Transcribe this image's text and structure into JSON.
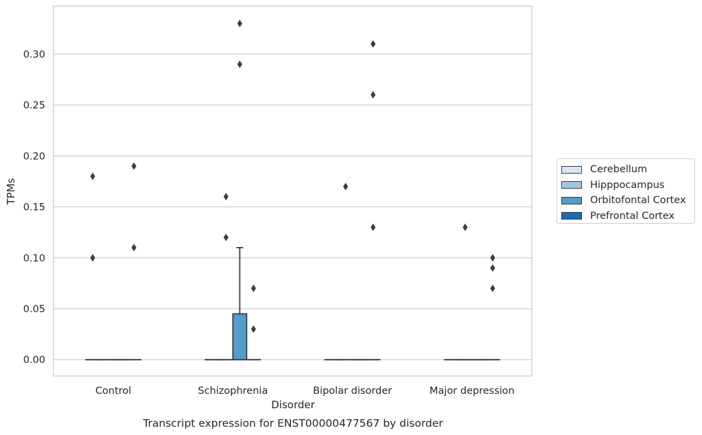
{
  "chart_data": {
    "type": "box",
    "caption": "Transcript expression for ENST00000477567 by disorder",
    "xlabel": "Disorder",
    "ylabel": "TPMs",
    "categories": [
      "Control",
      "Schizophrenia",
      "Bipolar disorder",
      "Major depression"
    ],
    "ylim": [
      -0.016,
      0.347
    ],
    "yticks": [
      "0.00",
      "0.05",
      "0.10",
      "0.15",
      "0.20",
      "0.25",
      "0.30"
    ],
    "grid": true,
    "legend_position": "right",
    "series": [
      {
        "name": "Cerebellum",
        "color": "#d6e6f4",
        "boxes": [
          {
            "q1": 0,
            "median": 0,
            "q3": 0,
            "whisker_low": 0,
            "whisker_high": 0,
            "outliers": [
              0.1,
              0.18
            ]
          },
          {
            "q1": 0,
            "median": 0,
            "q3": 0,
            "whisker_low": 0,
            "whisker_high": 0,
            "outliers": []
          },
          {
            "q1": 0,
            "median": 0,
            "q3": 0,
            "whisker_low": 0,
            "whisker_high": 0,
            "outliers": []
          },
          {
            "q1": 0,
            "median": 0,
            "q3": 0,
            "whisker_low": 0,
            "whisker_high": 0,
            "outliers": []
          }
        ]
      },
      {
        "name": "Hipppocampus",
        "color": "#9ac8e0",
        "boxes": [
          {
            "q1": 0,
            "median": 0,
            "q3": 0,
            "whisker_low": 0,
            "whisker_high": 0,
            "outliers": []
          },
          {
            "q1": 0,
            "median": 0,
            "q3": 0,
            "whisker_low": 0,
            "whisker_high": 0,
            "outliers": [
              0.12,
              0.16
            ]
          },
          {
            "q1": 0,
            "median": 0,
            "q3": 0,
            "whisker_low": 0,
            "whisker_high": 0,
            "outliers": [
              0.17
            ]
          },
          {
            "q1": 0,
            "median": 0,
            "q3": 0,
            "whisker_low": 0,
            "whisker_high": 0,
            "outliers": [
              0.13
            ]
          }
        ]
      },
      {
        "name": "Orbitofontal Cortex",
        "color": "#529dcc",
        "boxes": [
          {
            "q1": 0,
            "median": 0,
            "q3": 0,
            "whisker_low": 0,
            "whisker_high": 0,
            "outliers": []
          },
          {
            "q1": 0,
            "median": 0,
            "q3": 0.045,
            "whisker_low": 0,
            "whisker_high": 0.11,
            "outliers": [
              0.29,
              0.33
            ]
          },
          {
            "q1": 0,
            "median": 0,
            "q3": 0,
            "whisker_low": 0,
            "whisker_high": 0,
            "outliers": []
          },
          {
            "q1": 0,
            "median": 0,
            "q3": 0,
            "whisker_low": 0,
            "whisker_high": 0,
            "outliers": []
          }
        ]
      },
      {
        "name": "Prefrontal Cortex",
        "color": "#1c6aaf",
        "boxes": [
          {
            "q1": 0,
            "median": 0,
            "q3": 0,
            "whisker_low": 0,
            "whisker_high": 0,
            "outliers": [
              0.11,
              0.19
            ]
          },
          {
            "q1": 0,
            "median": 0,
            "q3": 0,
            "whisker_low": 0,
            "whisker_high": 0,
            "outliers": [
              0.03,
              0.07
            ]
          },
          {
            "q1": 0,
            "median": 0,
            "q3": 0,
            "whisker_low": 0,
            "whisker_high": 0,
            "outliers": [
              0.13,
              0.26,
              0.31
            ]
          },
          {
            "q1": 0,
            "median": 0,
            "q3": 0,
            "whisker_low": 0,
            "whisker_high": 0,
            "outliers": [
              0.07,
              0.09,
              0.1
            ]
          }
        ]
      }
    ]
  }
}
